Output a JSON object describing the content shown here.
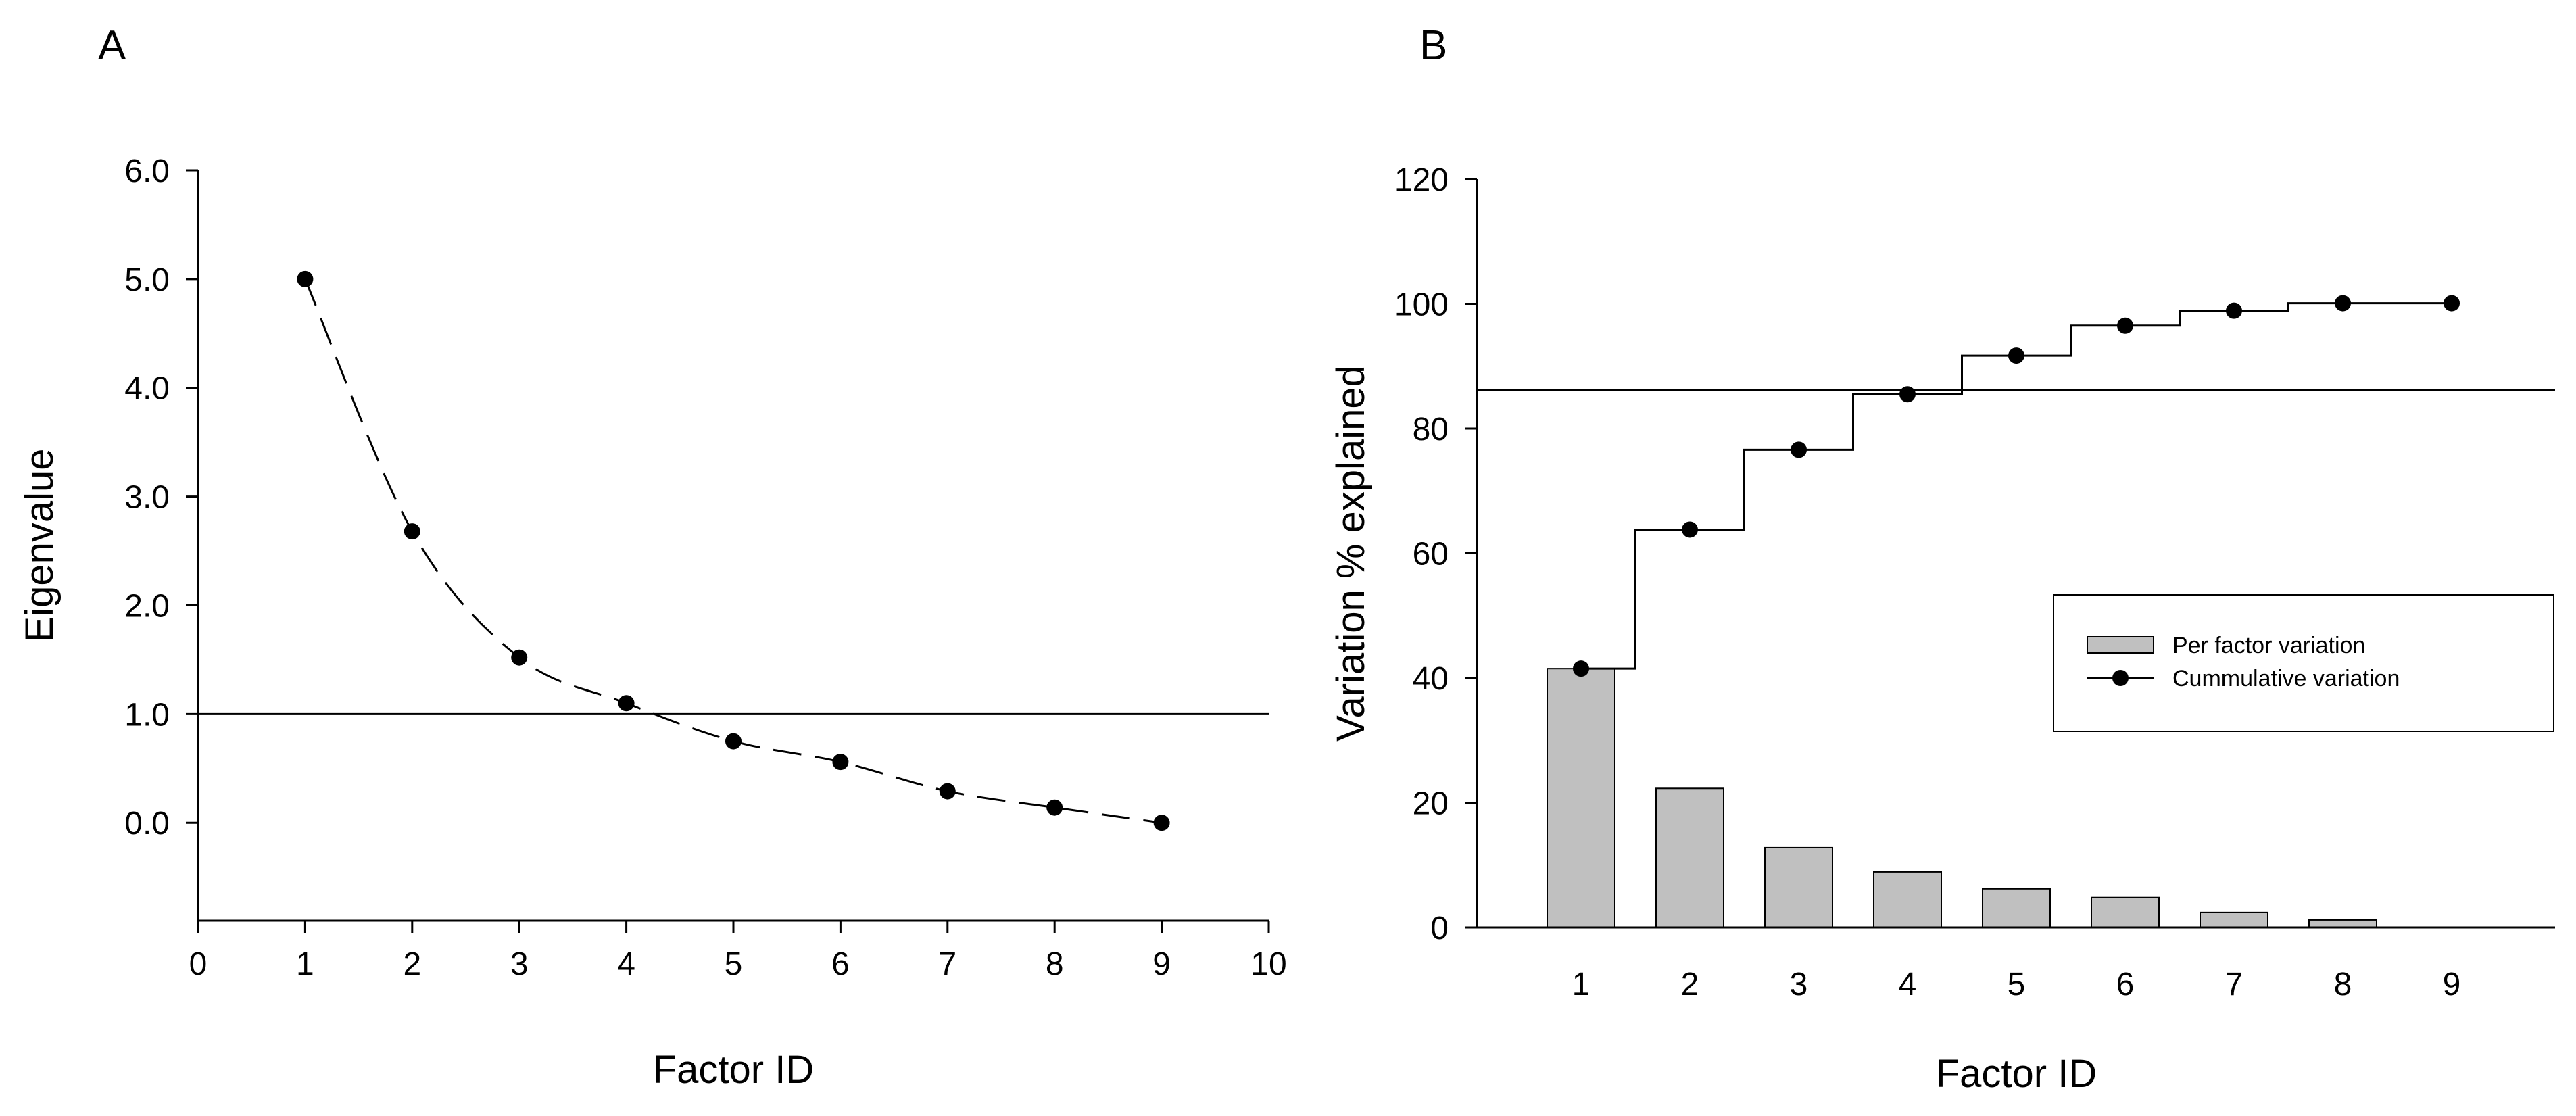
{
  "chart_data": [
    {
      "panel": "A",
      "type": "line",
      "title": "",
      "xlabel": "Factor ID",
      "ylabel": "Eigenvalue",
      "xlim": [
        0,
        10
      ],
      "ylim": [
        -0.9,
        6.0
      ],
      "x_ticks": [
        0,
        1,
        2,
        3,
        4,
        5,
        6,
        7,
        8,
        9,
        10
      ],
      "x_tick_labels": [
        "0",
        "1",
        "2",
        "3",
        "4",
        "5",
        "6",
        "7",
        "8",
        "9",
        "10"
      ],
      "y_ticks": [
        0,
        1,
        2,
        3,
        4,
        5,
        6
      ],
      "y_tick_labels": [
        "0.0",
        "1.0",
        "2.0",
        "3.0",
        "4.0",
        "5.0",
        "6.0"
      ],
      "x": [
        1,
        2,
        3,
        4,
        5,
        6,
        7,
        8,
        9
      ],
      "values": [
        5.0,
        2.68,
        1.52,
        1.1,
        0.75,
        0.56,
        0.29,
        0.14,
        0.0
      ],
      "reference_line": 1.0,
      "line_style": "dashed",
      "marker": "circle",
      "grid": false
    },
    {
      "panel": "B",
      "type": "bar",
      "title": "",
      "xlabel": "Factor ID",
      "ylabel": "Variation % explained",
      "ylim": [
        0,
        120
      ],
      "y_ticks": [
        0,
        20,
        40,
        60,
        80,
        100,
        120
      ],
      "y_tick_labels": [
        "0",
        "20",
        "40",
        "60",
        "80",
        "100",
        "120"
      ],
      "categories": [
        "1",
        "2",
        "3",
        "4",
        "5",
        "6",
        "7",
        "8",
        "9"
      ],
      "series": [
        {
          "name": "Per factor variation",
          "type": "bar",
          "color": "#c0c0c0",
          "values": [
            41.5,
            22.3,
            12.8,
            8.9,
            6.2,
            4.8,
            2.4,
            1.2,
            0.0
          ]
        },
        {
          "name": "Cummulative variation",
          "type": "step",
          "marker": "circle",
          "values": [
            41.5,
            63.8,
            76.6,
            85.5,
            91.7,
            96.5,
            98.9,
            100.1,
            100.1
          ]
        }
      ],
      "reference_line": 86.2,
      "legend_position": "right",
      "grid": false
    }
  ],
  "labels": {
    "panel_a": "A",
    "panel_b": "B"
  }
}
